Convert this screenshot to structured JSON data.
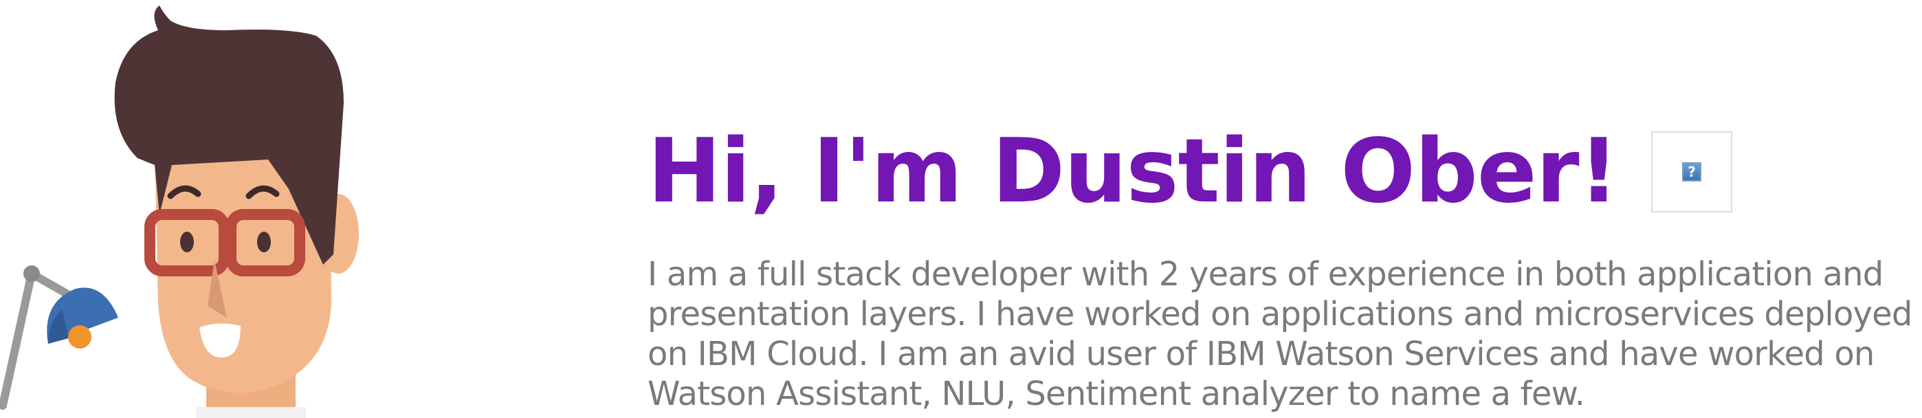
{
  "hero": {
    "title": "Hi, I'm Dustin Ober!",
    "bio": "I am a full stack developer with 2 years of experience in both application and presentation layers. I have worked on applications and microservices deployed on IBM Cloud. I am an avid user of IBM Watson Services and have worked on Watson Assistant, NLU, Sentiment analyzer to name a few.",
    "broken_image_glyph": "?"
  },
  "colors": {
    "title": "#7216b4",
    "bio": "#7a7a7a",
    "hair": "#4f3436",
    "skin": "#f2b88c",
    "glasses": "#b84a3e",
    "lamp_shade": "#3c6eb2",
    "lamp_arm": "#9a9a9a",
    "lamp_bulb": "#f0932b"
  },
  "icons": {
    "illustration": "developer-avatar-illustration",
    "broken_image": "broken-image-icon"
  }
}
